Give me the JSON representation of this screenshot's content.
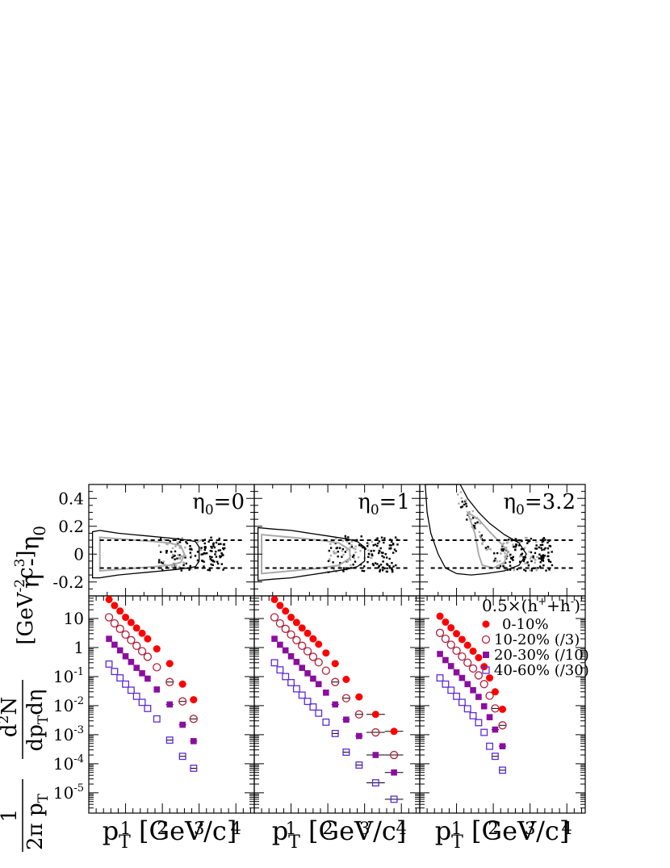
{
  "figure": {
    "top_ylabel_eta": "η",
    "top_ylabel_minus": " - ",
    "top_ylabel_eta0": "η",
    "top_ylabel_sub0": "0",
    "bottom_ylabel_one": "1",
    "bottom_ylabel_2pi": "2π p",
    "bottom_ylabel_T": "T",
    "bottom_ylabel_d2N": "d",
    "bottom_ylabel_sup2": "2",
    "bottom_ylabel_N": "N",
    "bottom_ylabel_dp": "dp",
    "bottom_ylabel_dT": "T",
    "bottom_ylabel_deta": "dη",
    "bottom_ylabel_units": "[GeV",
    "bottom_ylabel_units_exp": "-2",
    "bottom_ylabel_units_c": "c",
    "bottom_ylabel_units_exp2": "3",
    "bottom_ylabel_units_close": "]",
    "xlabel_p": "p",
    "xlabel_T": "T",
    "xlabel_units": " [GeV/c]",
    "legend_title_pre": "0.5×(h",
    "legend_title_sup1": "+",
    "legend_title_mid": "+h",
    "legend_title_sup2": "-",
    "legend_title_post": ")",
    "colors": {
      "red": "#ff0000",
      "maroon": "#b0203c",
      "purple": "#8a0ea0",
      "violet": "#5b2bd8",
      "gray": "#aaaaaa",
      "black": "#000000"
    }
  },
  "chart_data": [
    {
      "type": "scatter",
      "panel": "top-left",
      "annotation_eta": "η",
      "annotation_sub": "0",
      "annotation_value": "=0",
      "xlim": [
        0,
        4.5
      ],
      "ylim": [
        -0.3,
        0.5
      ],
      "yticks": [
        -0.2,
        0,
        0.2,
        0.4
      ],
      "ytick_labels": [
        "-0.2",
        "0",
        "0.2",
        "0.4"
      ],
      "dashed_lines_y": [
        0.1,
        -0.1
      ],
      "outer_contour": [
        [
          0.1,
          -0.17
        ],
        [
          0.1,
          0.16
        ],
        [
          0.3,
          0.17
        ],
        [
          0.8,
          0.15
        ],
        [
          1.2,
          0.14
        ],
        [
          1.6,
          0.13
        ],
        [
          2.0,
          0.12
        ],
        [
          2.4,
          0.11
        ],
        [
          2.7,
          0.1
        ],
        [
          2.9,
          0.09
        ],
        [
          3.0,
          0.05
        ],
        [
          3.0,
          -0.05
        ],
        [
          2.9,
          -0.09
        ],
        [
          2.7,
          -0.1
        ],
        [
          2.4,
          -0.11
        ],
        [
          2.0,
          -0.12
        ],
        [
          1.6,
          -0.13
        ],
        [
          1.2,
          -0.14
        ],
        [
          0.8,
          -0.15
        ],
        [
          0.3,
          -0.17
        ]
      ],
      "inner_contour": [
        [
          0.3,
          -0.12
        ],
        [
          0.3,
          0.12
        ],
        [
          0.8,
          0.11
        ],
        [
          1.3,
          0.1
        ],
        [
          1.8,
          0.09
        ],
        [
          2.2,
          0.08
        ],
        [
          2.5,
          0.06
        ],
        [
          2.6,
          0.0
        ],
        [
          2.5,
          -0.06
        ],
        [
          2.2,
          -0.08
        ],
        [
          1.8,
          -0.09
        ],
        [
          1.3,
          -0.1
        ],
        [
          0.8,
          -0.11
        ]
      ],
      "scatter_x_range": [
        1.9,
        3.7
      ],
      "scatter_y_range": [
        -0.12,
        0.12
      ]
    },
    {
      "type": "scatter",
      "panel": "top-middle",
      "annotation_eta": "η",
      "annotation_sub": "0",
      "annotation_value": "=1",
      "xlim": [
        0,
        4.5
      ],
      "ylim": [
        -0.3,
        0.5
      ],
      "dashed_lines_y": [
        0.1,
        -0.1
      ],
      "outer_contour": [
        [
          0.1,
          -0.19
        ],
        [
          0.1,
          0.19
        ],
        [
          0.5,
          0.18
        ],
        [
          1.0,
          0.17
        ],
        [
          1.5,
          0.15
        ],
        [
          2.0,
          0.13
        ],
        [
          2.5,
          0.11
        ],
        [
          2.8,
          0.09
        ],
        [
          3.0,
          0.05
        ],
        [
          3.0,
          -0.05
        ],
        [
          2.8,
          -0.09
        ],
        [
          2.5,
          -0.11
        ],
        [
          2.0,
          -0.13
        ],
        [
          1.5,
          -0.15
        ],
        [
          1.0,
          -0.17
        ],
        [
          0.5,
          -0.18
        ]
      ],
      "inner_contour": [
        [
          0.2,
          -0.14
        ],
        [
          0.2,
          0.14
        ],
        [
          1.0,
          0.12
        ],
        [
          1.8,
          0.1
        ],
        [
          2.3,
          0.08
        ],
        [
          2.6,
          0.03
        ],
        [
          2.6,
          -0.03
        ],
        [
          2.3,
          -0.08
        ],
        [
          1.8,
          -0.1
        ],
        [
          1.0,
          -0.12
        ]
      ],
      "scatter_x_range": [
        2.0,
        3.9
      ],
      "scatter_y_range": [
        -0.13,
        0.13
      ]
    },
    {
      "type": "scatter",
      "panel": "top-right",
      "annotation_eta": "η",
      "annotation_sub": "0",
      "annotation_value": "=3.2",
      "xlim": [
        0,
        4.5
      ],
      "ylim": [
        -0.3,
        0.5
      ],
      "dashed_lines_y": [
        0.1,
        -0.1
      ],
      "outer_contour": [
        [
          0.15,
          0.5
        ],
        [
          0.2,
          0.3
        ],
        [
          0.3,
          0.15
        ],
        [
          0.5,
          0.0
        ],
        [
          0.7,
          -0.1
        ],
        [
          1.0,
          -0.14
        ],
        [
          1.4,
          -0.15
        ],
        [
          1.8,
          -0.14
        ],
        [
          2.3,
          -0.12
        ],
        [
          2.7,
          -0.08
        ],
        [
          2.9,
          0.0
        ],
        [
          2.7,
          0.08
        ],
        [
          2.3,
          0.14
        ],
        [
          1.9,
          0.22
        ],
        [
          1.6,
          0.3
        ],
        [
          1.3,
          0.4
        ],
        [
          1.1,
          0.5
        ]
      ],
      "inner_contour": [
        [
          1.3,
          0.3
        ],
        [
          1.5,
          0.15
        ],
        [
          1.6,
          0.0
        ],
        [
          1.7,
          -0.08
        ],
        [
          2.0,
          -0.1
        ],
        [
          2.3,
          -0.06
        ],
        [
          2.4,
          0.02
        ],
        [
          2.2,
          0.08
        ],
        [
          1.9,
          0.16
        ],
        [
          1.6,
          0.25
        ]
      ],
      "scatter_x_range": [
        2.2,
        3.6
      ],
      "scatter_y_range": [
        -0.12,
        0.12
      ]
    },
    {
      "type": "scatter",
      "panel": "bottom-left",
      "yscale": "log",
      "xlim": [
        0,
        4.5
      ],
      "ylim": [
        2e-06,
        60
      ],
      "xticks": [
        1,
        2,
        3,
        4
      ],
      "xtick_labels": [
        "1",
        "2",
        "3",
        "4"
      ],
      "ytick_values": [
        1e-05,
        0.0001,
        0.001,
        0.01,
        0.1,
        1,
        10
      ],
      "ytick_base": "10",
      "ytick_exps": [
        "-5",
        "-4",
        "-3",
        "-2",
        "-1",
        "",
        ""
      ],
      "ytick_plain": [
        "",
        "",
        "",
        "",
        "",
        "1",
        "10"
      ],
      "series": [
        {
          "marker": "filled-circle",
          "color": "#ff0000",
          "x": [
            0.55,
            0.7,
            0.85,
            1.0,
            1.15,
            1.3,
            1.45,
            1.6,
            1.85,
            2.2,
            2.55,
            2.85
          ],
          "y": [
            45,
            28,
            18,
            11,
            7.3,
            4.7,
            3.1,
            2.0,
            0.9,
            0.28,
            0.055,
            0.016
          ]
        },
        {
          "marker": "open-circle",
          "color": "#b0203c",
          "x": [
            0.55,
            0.7,
            0.85,
            1.0,
            1.15,
            1.3,
            1.45,
            1.6,
            1.85,
            2.2,
            2.55,
            2.85
          ],
          "y": [
            11,
            6.8,
            4.4,
            2.8,
            1.8,
            1.15,
            0.75,
            0.48,
            0.21,
            0.065,
            0.014,
            0.0035
          ]
        },
        {
          "marker": "filled-square",
          "color": "#8a0ea0",
          "x": [
            0.55,
            0.7,
            0.85,
            1.0,
            1.15,
            1.3,
            1.45,
            1.6,
            1.85,
            2.2,
            2.55,
            2.85
          ],
          "y": [
            2.0,
            1.25,
            0.8,
            0.5,
            0.32,
            0.2,
            0.13,
            0.085,
            0.036,
            0.011,
            0.0022,
            0.0006
          ]
        },
        {
          "marker": "open-square",
          "color": "#5b2bd8",
          "x": [
            0.55,
            0.7,
            0.85,
            1.0,
            1.15,
            1.3,
            1.45,
            1.6,
            1.85,
            2.2,
            2.55,
            2.85
          ],
          "y": [
            0.27,
            0.15,
            0.09,
            0.055,
            0.034,
            0.021,
            0.013,
            0.008,
            0.0035,
            0.00065,
            0.00018,
            7e-05
          ]
        }
      ]
    },
    {
      "type": "scatter",
      "panel": "bottom-middle",
      "yscale": "log",
      "xlim": [
        0,
        4.5
      ],
      "ylim": [
        2e-06,
        60
      ],
      "xticks": [
        1,
        2,
        3,
        4
      ],
      "xtick_labels": [
        "1",
        "2",
        "3",
        "4"
      ],
      "series": [
        {
          "marker": "filled-circle",
          "color": "#ff0000",
          "x": [
            0.55,
            0.7,
            0.85,
            1.0,
            1.15,
            1.3,
            1.45,
            1.6,
            1.75,
            1.95,
            2.2,
            2.5,
            2.85,
            3.3,
            3.8
          ],
          "y": [
            45,
            28,
            18,
            11,
            7.3,
            4.7,
            3.1,
            2.0,
            1.3,
            0.65,
            0.28,
            0.08,
            0.02,
            0.005,
            0.0013
          ]
        },
        {
          "marker": "open-circle",
          "color": "#b0203c",
          "x": [
            0.55,
            0.7,
            0.85,
            1.0,
            1.15,
            1.3,
            1.45,
            1.6,
            1.75,
            1.95,
            2.2,
            2.5,
            2.85,
            3.3,
            3.8
          ],
          "y": [
            11,
            6.8,
            4.4,
            2.8,
            1.8,
            1.15,
            0.75,
            0.48,
            0.31,
            0.16,
            0.065,
            0.018,
            0.005,
            0.0012,
            0.0002
          ]
        },
        {
          "marker": "filled-square",
          "color": "#8a0ea0",
          "x": [
            0.55,
            0.7,
            0.85,
            1.0,
            1.15,
            1.3,
            1.45,
            1.6,
            1.75,
            1.95,
            2.2,
            2.5,
            2.85,
            3.3,
            3.8
          ],
          "y": [
            2.0,
            1.25,
            0.8,
            0.5,
            0.32,
            0.2,
            0.13,
            0.085,
            0.055,
            0.028,
            0.011,
            0.0033,
            0.0009,
            0.0002,
            5e-05
          ]
        },
        {
          "marker": "open-square",
          "color": "#5b2bd8",
          "x": [
            0.55,
            0.7,
            0.85,
            1.0,
            1.15,
            1.3,
            1.45,
            1.6,
            1.75,
            1.95,
            2.2,
            2.5,
            2.85,
            3.3,
            3.8
          ],
          "y": [
            0.3,
            0.17,
            0.1,
            0.062,
            0.038,
            0.023,
            0.014,
            0.009,
            0.0055,
            0.0027,
            0.0011,
            0.00025,
            9e-05,
            2.2e-05,
            6e-06
          ]
        }
      ]
    },
    {
      "type": "scatter",
      "panel": "bottom-right",
      "yscale": "log",
      "xlim": [
        0,
        4.5
      ],
      "ylim": [
        2e-06,
        60
      ],
      "xticks": [
        1,
        2,
        3,
        4
      ],
      "xtick_labels": [
        "1",
        "2",
        "3",
        "4"
      ],
      "legend_position": "top-right",
      "legend_entries": [
        "0-10%",
        "10-20% (/3)",
        "20-30% (/10)",
        "40-60% (/30)"
      ],
      "series": [
        {
          "name": "0-10%",
          "marker": "filled-circle",
          "color": "#ff0000",
          "x": [
            0.55,
            0.7,
            0.85,
            1.0,
            1.15,
            1.3,
            1.45,
            1.6,
            1.75,
            1.9,
            2.05,
            2.25
          ],
          "y": [
            12,
            7.5,
            4.8,
            3.0,
            1.9,
            1.2,
            0.75,
            0.45,
            0.22,
            0.09,
            0.03,
            0.0075
          ]
        },
        {
          "name": "10-20% (/3)",
          "marker": "open-circle",
          "color": "#b0203c",
          "x": [
            0.55,
            0.7,
            0.85,
            1.0,
            1.15,
            1.3,
            1.45,
            1.6,
            1.75,
            1.9,
            2.05,
            2.25
          ],
          "y": [
            3.2,
            2.0,
            1.25,
            0.78,
            0.49,
            0.3,
            0.19,
            0.11,
            0.055,
            0.022,
            0.008,
            0.0021
          ]
        },
        {
          "name": "20-30% (/10)",
          "marker": "filled-square",
          "color": "#8a0ea0",
          "x": [
            0.55,
            0.7,
            0.85,
            1.0,
            1.15,
            1.3,
            1.45,
            1.6,
            1.75,
            1.9,
            2.05,
            2.25
          ],
          "y": [
            0.6,
            0.37,
            0.23,
            0.14,
            0.09,
            0.055,
            0.034,
            0.02,
            0.0095,
            0.004,
            0.0015,
            0.0004
          ]
        },
        {
          "name": "40-60% (/30)",
          "marker": "open-square",
          "color": "#5b2bd8",
          "x": [
            0.55,
            0.7,
            0.85,
            1.0,
            1.15,
            1.3,
            1.45,
            1.6,
            1.75,
            1.9,
            2.05,
            2.25
          ],
          "y": [
            0.09,
            0.055,
            0.034,
            0.021,
            0.013,
            0.0078,
            0.0045,
            0.0026,
            0.0012,
            0.0004,
            0.00018,
            6e-05
          ]
        }
      ]
    }
  ]
}
